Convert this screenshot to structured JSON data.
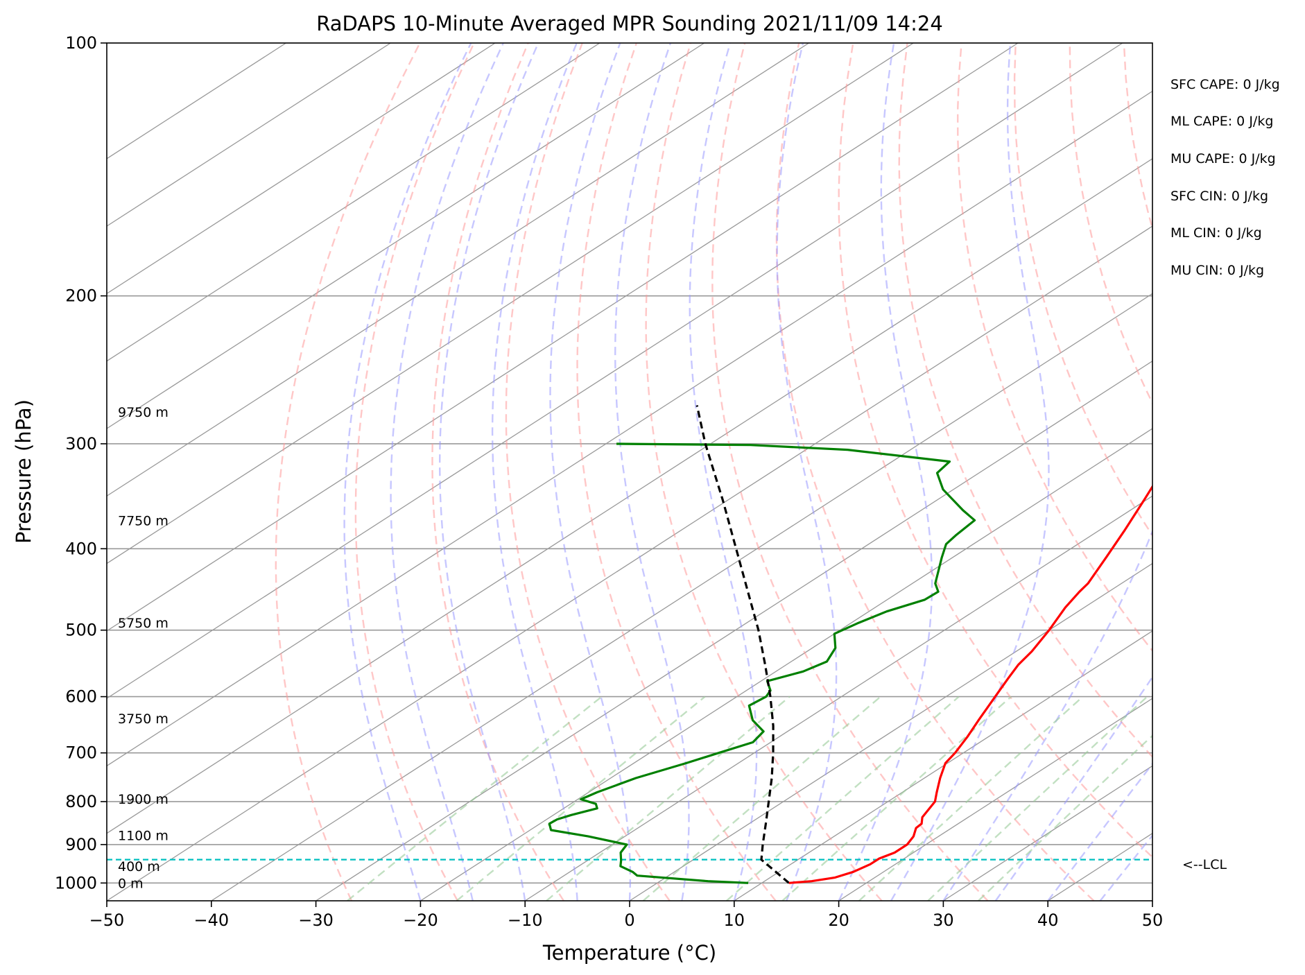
{
  "chart_data": {
    "type": "line",
    "title": "RaDAPS 10-Minute Averaged MPR Sounding 2021/11/09 14:24",
    "xlabel": "Temperature (°C)",
    "ylabel": "Pressure (hPa)",
    "xlim": [
      -50,
      50
    ],
    "ylim": [
      1050,
      100
    ],
    "y_scale": "log",
    "skew": "skew-T log-P",
    "grid": true,
    "x_ticks": [
      -50,
      -40,
      -30,
      -20,
      -10,
      0,
      10,
      20,
      30,
      40,
      50
    ],
    "x_tick_labels": [
      "−50",
      "−40",
      "−30",
      "−20",
      "−10",
      "0",
      "10",
      "20",
      "30",
      "40",
      "50"
    ],
    "y_ticks": [
      100,
      200,
      300,
      400,
      500,
      600,
      700,
      800,
      900,
      1000
    ],
    "y_tick_labels": [
      "100",
      "200",
      "300",
      "400",
      "500",
      "600",
      "700",
      "800",
      "900",
      "1000"
    ],
    "colors": {
      "temperature": "#ff0000",
      "dewpoint": "#008000",
      "parcel": "#000000",
      "lcl": "#00bfbf",
      "dry_adiabats": "#ff9999",
      "moist_adiabats": "#9999ff",
      "mixing_ratio": "#99cc99",
      "isotherms": "#999999"
    },
    "series": [
      {
        "role": "temperature",
        "points": [
          {
            "p": 1000,
            "t": 12.6
          },
          {
            "p": 995,
            "t": 14.5
          },
          {
            "p": 985,
            "t": 16.2
          },
          {
            "p": 970,
            "t": 17.1
          },
          {
            "p": 950,
            "t": 17.6
          },
          {
            "p": 935,
            "t": 17.6
          },
          {
            "p": 920,
            "t": 18.2
          },
          {
            "p": 900,
            "t": 18.2
          },
          {
            "p": 880,
            "t": 17.6
          },
          {
            "p": 860,
            "t": 16.6
          },
          {
            "p": 850,
            "t": 16.5
          },
          {
            "p": 835,
            "t": 15.6
          },
          {
            "p": 800,
            "t": 14.5
          },
          {
            "p": 780,
            "t": 13.3
          },
          {
            "p": 750,
            "t": 11.5
          },
          {
            "p": 720,
            "t": 9.8
          },
          {
            "p": 700,
            "t": 9.2
          },
          {
            "p": 670,
            "t": 8.0
          },
          {
            "p": 640,
            "t": 6.6
          },
          {
            "p": 600,
            "t": 4.7
          },
          {
            "p": 570,
            "t": 3.2
          },
          {
            "p": 550,
            "t": 2.2
          },
          {
            "p": 530,
            "t": 1.5
          },
          {
            "p": 500,
            "t": 0.0
          },
          {
            "p": 470,
            "t": -1.8
          },
          {
            "p": 450,
            "t": -2.8
          },
          {
            "p": 440,
            "t": -3.2
          },
          {
            "p": 410,
            "t": -5.3
          },
          {
            "p": 380,
            "t": -7.6
          },
          {
            "p": 350,
            "t": -10.2
          },
          {
            "p": 330,
            "t": -12.1
          },
          {
            "p": 310,
            "t": -14.3
          },
          {
            "p": 290,
            "t": -16.0
          },
          {
            "p": 275,
            "t": -17.4
          },
          {
            "p": 264,
            "t": -18.0
          }
        ]
      },
      {
        "role": "dewpoint",
        "points": [
          {
            "p": 1000,
            "t": 8.7
          },
          {
            "p": 995,
            "t": 4.6
          },
          {
            "p": 980,
            "t": -3.0
          },
          {
            "p": 970,
            "t": -4.0
          },
          {
            "p": 955,
            "t": -6.0
          },
          {
            "p": 940,
            "t": -6.8
          },
          {
            "p": 920,
            "t": -8.0
          },
          {
            "p": 900,
            "t": -8.6
          },
          {
            "p": 880,
            "t": -13.5
          },
          {
            "p": 865,
            "t": -18.0
          },
          {
            "p": 850,
            "t": -19.1
          },
          {
            "p": 840,
            "t": -19.0
          },
          {
            "p": 830,
            "t": -18.3
          },
          {
            "p": 815,
            "t": -16.8
          },
          {
            "p": 805,
            "t": -17.6
          },
          {
            "p": 795,
            "t": -19.7
          },
          {
            "p": 780,
            "t": -19.2
          },
          {
            "p": 750,
            "t": -17.6
          },
          {
            "p": 720,
            "t": -15.0
          },
          {
            "p": 700,
            "t": -13.4
          },
          {
            "p": 680,
            "t": -11.7
          },
          {
            "p": 660,
            "t": -12.3
          },
          {
            "p": 640,
            "t": -15.0
          },
          {
            "p": 615,
            "t": -17.5
          },
          {
            "p": 600,
            "t": -17.2
          },
          {
            "p": 590,
            "t": -17.7
          },
          {
            "p": 575,
            "t": -19.4
          },
          {
            "p": 560,
            "t": -17.4
          },
          {
            "p": 545,
            "t": -16.6
          },
          {
            "p": 525,
            "t": -17.8
          },
          {
            "p": 505,
            "t": -20.0
          },
          {
            "p": 490,
            "t": -19.3
          },
          {
            "p": 475,
            "t": -18.3
          },
          {
            "p": 460,
            "t": -16.4
          },
          {
            "p": 450,
            "t": -16.3
          },
          {
            "p": 440,
            "t": -17.8
          },
          {
            "p": 410,
            "t": -21.0
          },
          {
            "p": 395,
            "t": -22.6
          },
          {
            "p": 385,
            "t": -23.0
          },
          {
            "p": 370,
            "t": -23.4
          },
          {
            "p": 360,
            "t": -26.0
          },
          {
            "p": 340,
            "t": -31.0
          },
          {
            "p": 325,
            "t": -34.0
          },
          {
            "p": 315,
            "t": -34.5
          },
          {
            "p": 305,
            "t": -46.0
          },
          {
            "p": 301,
            "t": -56.0
          },
          {
            "p": 300,
            "t": -69.0
          }
        ]
      },
      {
        "role": "parcel",
        "points": [
          {
            "p": 1000,
            "t": 12.6
          },
          {
            "p": 938,
            "t": 6.5
          },
          {
            "p": 900,
            "t": 4.4
          },
          {
            "p": 850,
            "t": 1.6
          },
          {
            "p": 800,
            "t": -1.4
          },
          {
            "p": 750,
            "t": -4.6
          },
          {
            "p": 700,
            "t": -8.2
          },
          {
            "p": 650,
            "t": -12.2
          },
          {
            "p": 600,
            "t": -16.8
          },
          {
            "p": 550,
            "t": -22.0
          },
          {
            "p": 500,
            "t": -27.8
          },
          {
            "p": 450,
            "t": -34.5
          },
          {
            "p": 400,
            "t": -42.0
          },
          {
            "p": 350,
            "t": -50.5
          },
          {
            "p": 300,
            "t": -60.5
          },
          {
            "p": 270,
            "t": -67.0
          }
        ]
      }
    ],
    "lcl_pressure": 938,
    "lcl_label": "<--LCL",
    "height_labels": [
      {
        "text": "9750 m",
        "p": 275
      },
      {
        "text": "7750 m",
        "p": 370
      },
      {
        "text": "5750 m",
        "p": 490
      },
      {
        "text": "3750 m",
        "p": 637
      },
      {
        "text": "1900 m",
        "p": 794
      },
      {
        "text": "1100 m",
        "p": 877
      },
      {
        "text": "400 m",
        "p": 955
      },
      {
        "text": "0 m",
        "p": 1000
      }
    ],
    "indices": [
      "SFC CAPE: 0 J/kg",
      "ML CAPE: 0 J/kg",
      "MU CAPE: 0 J/kg",
      "SFC CIN: 0 J/kg",
      "ML CIN: 0 J/kg",
      "MU CIN: 0 J/kg"
    ]
  }
}
